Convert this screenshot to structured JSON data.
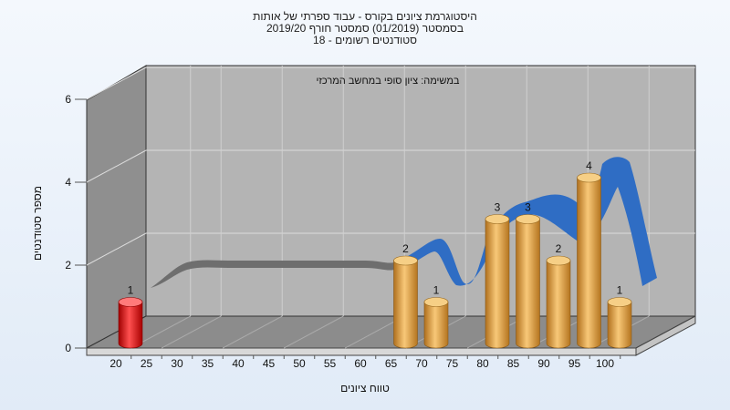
{
  "chart_data": {
    "type": "bar",
    "title_lines": [
      "היסטוגרמת ציונים בקורס - עבוד ספרתי של אותות",
      "בסמסטר  (01/2019)  סמסטר חורף 2019/20",
      "סטודנטים רשומים - 18"
    ],
    "annotation": "במשימה: ציון סופי במחשב המרכזי",
    "xlabel": "טווח ציונים",
    "ylabel": "מספר סטודנטים",
    "categories": [
      "20",
      "25",
      "30",
      "35",
      "40",
      "45",
      "50",
      "55",
      "60",
      "65",
      "70",
      "75",
      "80",
      "85",
      "90",
      "95",
      "100"
    ],
    "bars": [
      {
        "x": "20",
        "value": 1,
        "color": "#e02020"
      },
      {
        "x": "65",
        "value": 2,
        "color": "#e8a040"
      },
      {
        "x": "70",
        "value": 1,
        "color": "#e8a040"
      },
      {
        "x": "80",
        "value": 3,
        "color": "#e8a040"
      },
      {
        "x": "85",
        "value": 3,
        "color": "#e8a040"
      },
      {
        "x": "90",
        "value": 2,
        "color": "#e8a040"
      },
      {
        "x": "95",
        "value": 4,
        "color": "#e8a040"
      },
      {
        "x": "100",
        "value": 1,
        "color": "#e8a040"
      }
    ],
    "yticks": [
      0,
      2,
      4,
      6
    ],
    "ylim": [
      0,
      6
    ],
    "grid": true,
    "trend_colors": {
      "gray": "#6e6e6e",
      "blue": "#2f6dc4"
    }
  }
}
